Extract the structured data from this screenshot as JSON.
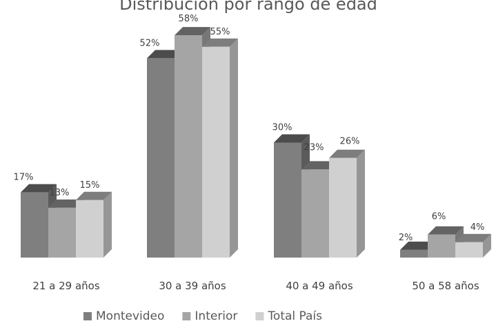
{
  "chart_data": {
    "type": "bar",
    "title": "Distribución por rango de edad",
    "categories": [
      "21 a 29 años",
      "30 a 39 años",
      "40 a 49 años",
      "50 a 58 años"
    ],
    "series": [
      {
        "name": "Montevideo",
        "values": [
          17,
          52,
          30,
          2
        ],
        "labels": [
          "17%",
          "52%",
          "30%",
          "2%"
        ]
      },
      {
        "name": "Interior",
        "values": [
          13,
          58,
          23,
          6
        ],
        "labels": [
          "13%",
          "58%",
          "23%",
          "6%"
        ]
      },
      {
        "name": "Total País",
        "values": [
          15,
          55,
          26,
          4
        ],
        "labels": [
          "15%",
          "55%",
          "26%",
          "4%"
        ]
      }
    ],
    "colors": {
      "Montevideo": "#7f7f7f",
      "Interior": "#a5a5a5",
      "Total País": "#d0d0d0"
    },
    "ylim": [
      0,
      60
    ],
    "grid": false,
    "legend_position": "bottom",
    "style": "3d-clustered-column"
  }
}
